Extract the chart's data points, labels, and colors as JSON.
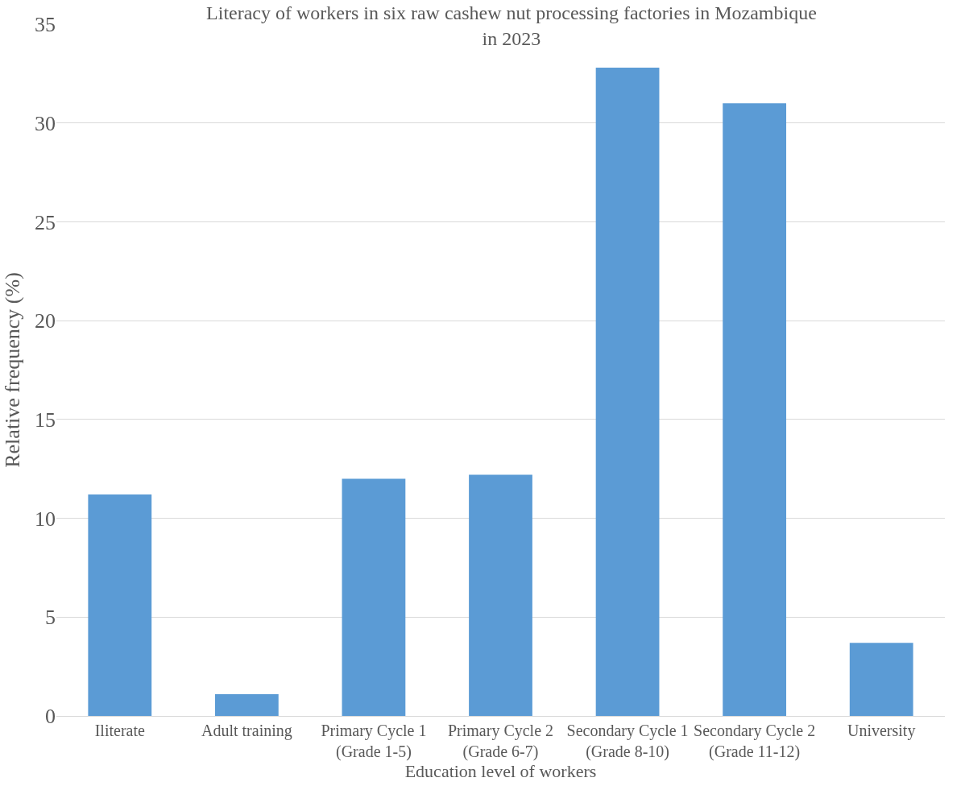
{
  "chart_data": {
    "type": "bar",
    "title": "Literacy of workers in six raw cashew nut processing factories in Mozambique\nin 2023",
    "xlabel": "Education level of workers",
    "ylabel": "Relative frequency (%)",
    "categories": [
      "Iliterate",
      "Adult training",
      "Primary Cycle 1 (Grade 1-5)",
      "Primary Cycle 2 (Grade 6-7)",
      "Secondary Cycle 1 (Grade 8-10)",
      "Secondary Cycle 2 (Grade 11-12)",
      "University"
    ],
    "values": [
      11.2,
      1.1,
      12.0,
      12.2,
      32.8,
      31.0,
      3.7
    ],
    "color": "#5b9bd5",
    "ylim": [
      0,
      35
    ],
    "yticks": [
      0,
      5,
      10,
      15,
      20,
      25,
      30,
      35
    ],
    "grid": "y"
  }
}
